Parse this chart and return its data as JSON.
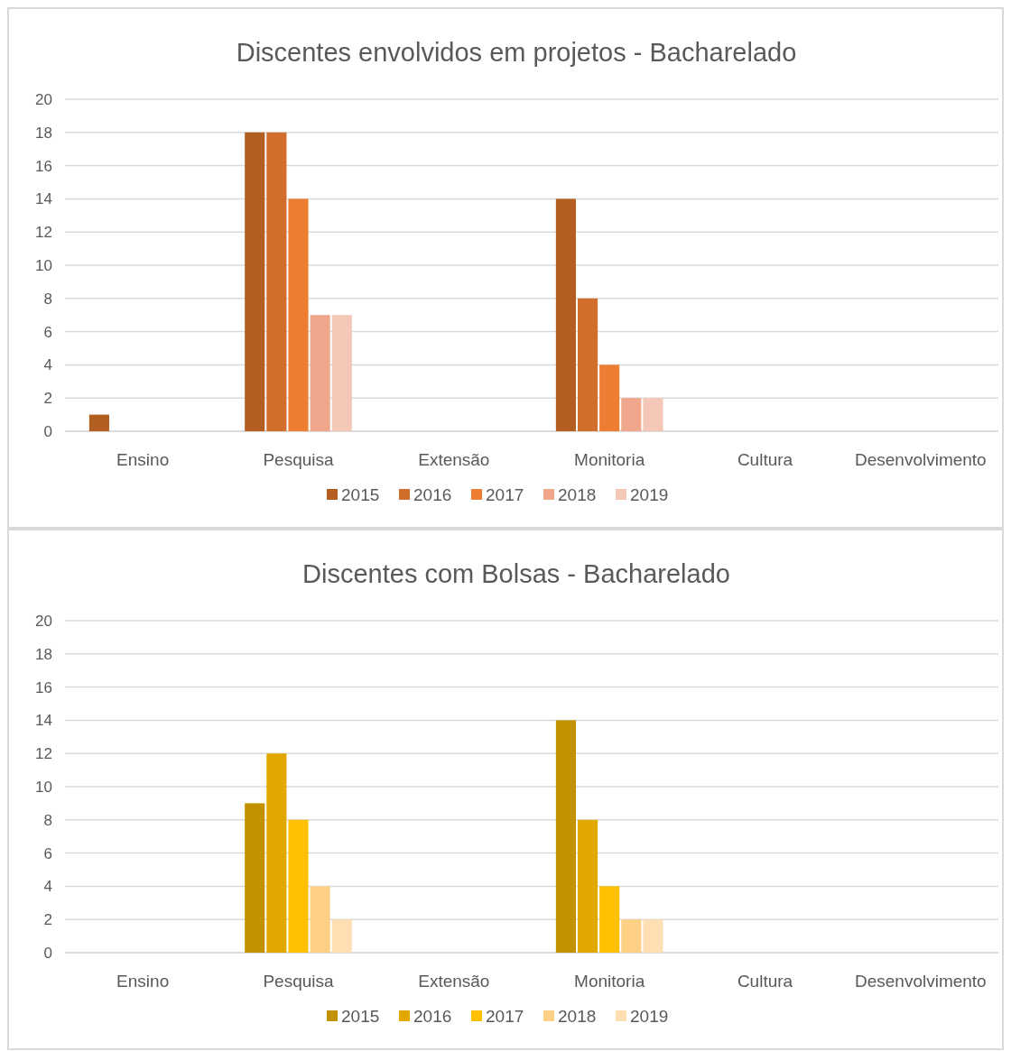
{
  "chart_data": [
    {
      "type": "bar",
      "title": "Discentes envolvidos em projetos - Bacharelado",
      "categories": [
        "Ensino",
        "Pesquisa",
        "Extensão",
        "Monitoria",
        "Cultura",
        "Desenvolvimento"
      ],
      "series": [
        {
          "name": "2015",
          "color": "#b45f22",
          "values": [
            1,
            18,
            0,
            14,
            0,
            0
          ]
        },
        {
          "name": "2016",
          "color": "#d26e2b",
          "values": [
            0,
            18,
            0,
            8,
            0,
            0
          ]
        },
        {
          "name": "2017",
          "color": "#ed7d31",
          "values": [
            0,
            14,
            0,
            4,
            0,
            0
          ]
        },
        {
          "name": "2018",
          "color": "#f0a68a",
          "values": [
            0,
            7,
            0,
            2,
            0,
            0
          ]
        },
        {
          "name": "2019",
          "color": "#f4c7b6",
          "values": [
            0,
            7,
            0,
            2,
            0,
            0
          ]
        }
      ],
      "ylim": [
        0,
        20
      ],
      "yticks": [
        0,
        2,
        4,
        6,
        8,
        10,
        12,
        14,
        16,
        18,
        20
      ],
      "grid": "y",
      "legend": "bottom"
    },
    {
      "type": "bar",
      "title": "Discentes com Bolsas - Bacharelado",
      "categories": [
        "Ensino",
        "Pesquisa",
        "Extensão",
        "Monitoria",
        "Cultura",
        "Desenvolvimento"
      ],
      "series": [
        {
          "name": "2015",
          "color": "#c19100",
          "values": [
            0,
            9,
            0,
            14,
            0,
            0
          ]
        },
        {
          "name": "2016",
          "color": "#e2a800",
          "values": [
            0,
            12,
            0,
            8,
            0,
            0
          ]
        },
        {
          "name": "2017",
          "color": "#ffc000",
          "values": [
            0,
            8,
            0,
            4,
            0,
            0
          ]
        },
        {
          "name": "2018",
          "color": "#fdd085",
          "values": [
            0,
            4,
            0,
            2,
            0,
            0
          ]
        },
        {
          "name": "2019",
          "color": "#fedfb3",
          "values": [
            0,
            2,
            0,
            2,
            0,
            0
          ]
        }
      ],
      "ylim": [
        0,
        20
      ],
      "yticks": [
        0,
        2,
        4,
        6,
        8,
        10,
        12,
        14,
        16,
        18,
        20
      ],
      "grid": "y",
      "legend": "bottom"
    }
  ]
}
